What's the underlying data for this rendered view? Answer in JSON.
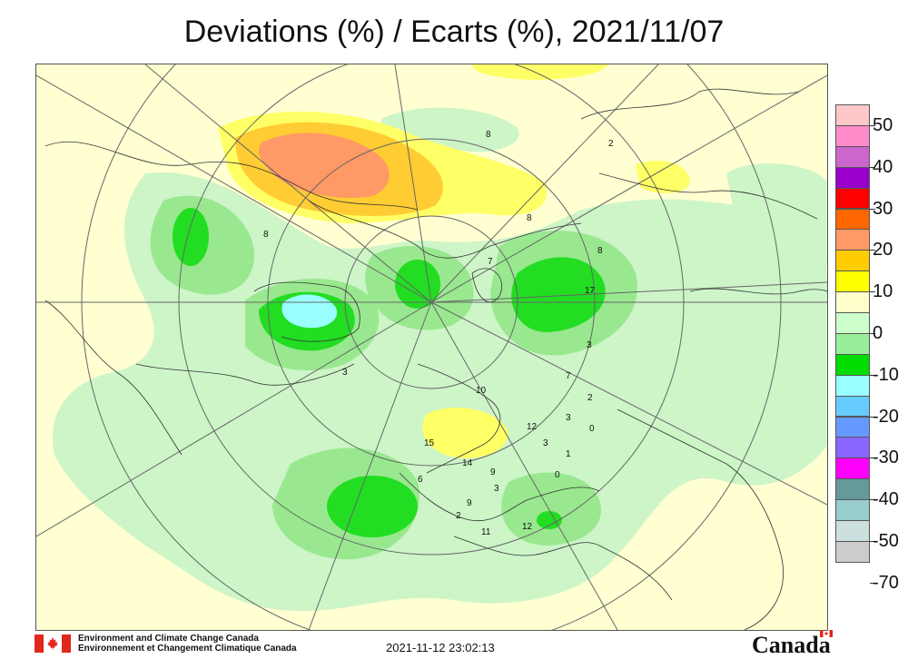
{
  "title": "Deviations (%) / Ecarts (%), 2021/11/07",
  "legend": {
    "labels": [
      "50",
      "40",
      "30",
      "20",
      "10",
      "0",
      "-10",
      "-20",
      "-30",
      "-40",
      "-50",
      "-70"
    ],
    "colors": [
      "#ffc8c8",
      "#ff8cc8",
      "#cc66cc",
      "#9900cc",
      "#ff0000",
      "#ff6600",
      "#ff9966",
      "#ffcc00",
      "#ffff00",
      "#ffffcc",
      "#ccffcc",
      "#99ee99",
      "#00dd00",
      "#99ffff",
      "#66ccff",
      "#6699ff",
      "#8866ff",
      "#ff00ff",
      "#669999",
      "#99cccc",
      "#cce0e0",
      "#cccccc"
    ]
  },
  "map": {
    "projection": "polar stereographic, north pole",
    "station_labels": [
      "8",
      "8",
      "8",
      "7",
      "17",
      "3",
      "7",
      "2",
      "3",
      "12",
      "3",
      "1",
      "0",
      "15",
      "14",
      "6",
      "9",
      "3",
      "9",
      "2",
      "11",
      "12",
      "0",
      "3",
      "10",
      "8",
      "2"
    ]
  },
  "footer": {
    "agency_en": "Environment and Climate Change Canada",
    "agency_fr": "Environnement et Changement Climatique Canada",
    "timestamp": "2021-11-12 23:02:13",
    "wordmark": "Canada"
  }
}
